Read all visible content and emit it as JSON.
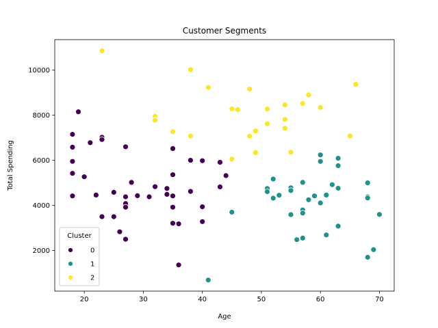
{
  "chart_data": {
    "type": "scatter",
    "title": "Customer Segments",
    "xlabel": "Age",
    "ylabel": "Total Spending",
    "xlim": [
      15,
      72.5
    ],
    "ylim": [
      200,
      11350
    ],
    "xticks": [
      20,
      30,
      40,
      50,
      60,
      70
    ],
    "yticks": [
      2000,
      4000,
      6000,
      8000,
      10000
    ],
    "grid": false,
    "legend": {
      "title": "Cluster",
      "placement": "lower-left"
    },
    "series": [
      {
        "name": "0",
        "color": "#440154",
        "points": [
          [
            18,
            7150
          ],
          [
            18,
            6580
          ],
          [
            18,
            5950
          ],
          [
            18,
            5420
          ],
          [
            18,
            4420
          ],
          [
            19,
            8150
          ],
          [
            20,
            5270
          ],
          [
            21,
            6780
          ],
          [
            22,
            4460
          ],
          [
            23,
            7020
          ],
          [
            23,
            6920
          ],
          [
            23,
            3500
          ],
          [
            25,
            4580
          ],
          [
            25,
            3500
          ],
          [
            26,
            2830
          ],
          [
            27,
            6600
          ],
          [
            27,
            4380
          ],
          [
            27,
            4080
          ],
          [
            27,
            3920
          ],
          [
            27,
            2500
          ],
          [
            28,
            5020
          ],
          [
            29,
            4430
          ],
          [
            31,
            4380
          ],
          [
            32,
            4830
          ],
          [
            34,
            4750
          ],
          [
            34,
            4490
          ],
          [
            35,
            6520
          ],
          [
            35,
            5360
          ],
          [
            35,
            4420
          ],
          [
            35,
            3920
          ],
          [
            35,
            3210
          ],
          [
            36,
            3180
          ],
          [
            36,
            1360
          ],
          [
            38,
            6000
          ],
          [
            38,
            4620
          ],
          [
            40,
            5980
          ],
          [
            40,
            3940
          ],
          [
            40,
            3280
          ],
          [
            43,
            5910
          ],
          [
            43,
            4820
          ],
          [
            44,
            5320
          ]
        ]
      },
      {
        "name": "1",
        "color": "#21918c",
        "points": [
          [
            41,
            690
          ],
          [
            45,
            3700
          ],
          [
            51,
            4750
          ],
          [
            51,
            4610
          ],
          [
            52,
            5170
          ],
          [
            52,
            4320
          ],
          [
            53,
            4450
          ],
          [
            55,
            4780
          ],
          [
            55,
            4660
          ],
          [
            55,
            3590
          ],
          [
            56,
            2480
          ],
          [
            57,
            5020
          ],
          [
            57,
            3800
          ],
          [
            57,
            3660
          ],
          [
            57,
            2550
          ],
          [
            58,
            4250
          ],
          [
            59,
            4420
          ],
          [
            60,
            6240
          ],
          [
            60,
            5950
          ],
          [
            60,
            4110
          ],
          [
            61,
            4460
          ],
          [
            61,
            2690
          ],
          [
            62,
            4920
          ],
          [
            63,
            6090
          ],
          [
            63,
            5760
          ],
          [
            63,
            4760
          ],
          [
            63,
            3080
          ],
          [
            68,
            5000
          ],
          [
            68,
            4380
          ],
          [
            68,
            4330
          ],
          [
            68,
            1700
          ],
          [
            69,
            2040
          ],
          [
            70,
            3600
          ]
        ]
      },
      {
        "name": "2",
        "color": "#fde725",
        "points": [
          [
            23,
            10850
          ],
          [
            32,
            7950
          ],
          [
            32,
            7780
          ],
          [
            35,
            7270
          ],
          [
            38,
            10020
          ],
          [
            38,
            7080
          ],
          [
            41,
            9230
          ],
          [
            45,
            8280
          ],
          [
            45,
            6050
          ],
          [
            46,
            8250
          ],
          [
            48,
            9160
          ],
          [
            48,
            7070
          ],
          [
            49,
            7300
          ],
          [
            49,
            6340
          ],
          [
            51,
            8280
          ],
          [
            51,
            7620
          ],
          [
            54,
            8460
          ],
          [
            54,
            7810
          ],
          [
            54,
            7420
          ],
          [
            55,
            6360
          ],
          [
            57,
            8520
          ],
          [
            58,
            8900
          ],
          [
            60,
            8340
          ],
          [
            65,
            7080
          ],
          [
            66,
            9370
          ]
        ]
      }
    ]
  }
}
